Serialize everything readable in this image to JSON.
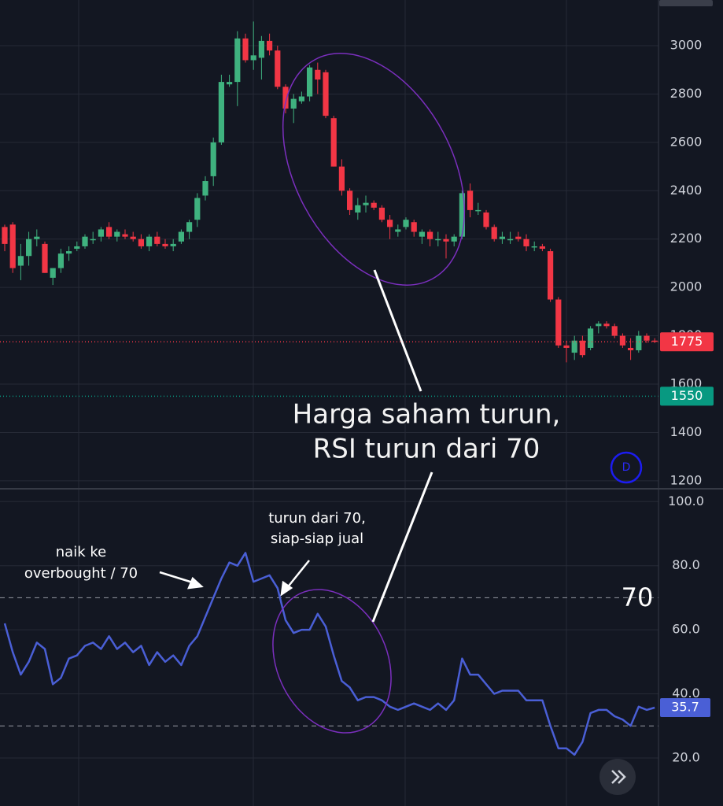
{
  "chart_data": [
    {
      "type": "candlestick",
      "open": [
        2250,
        2260,
        2090,
        2130,
        2200,
        2180,
        2040,
        2080,
        2140,
        2160,
        2170,
        2200,
        2210,
        2250,
        2210,
        2220,
        2210,
        2200,
        2170,
        2210,
        2180,
        2170,
        2190,
        2230,
        2280,
        2380,
        2460,
        2600,
        2840,
        2850,
        3030,
        2940,
        2950,
        3020,
        2980,
        2830,
        2740,
        2770,
        2790,
        2900,
        2890,
        2700,
        2500,
        2400,
        2310,
        2340,
        2350,
        2330,
        2280,
        2230,
        2250,
        2270,
        2210,
        2230,
        2200,
        2200,
        2190,
        2210,
        2400,
        2320,
        2310,
        2250,
        2200,
        2200,
        2210,
        2200,
        2170,
        2170,
        2150,
        1950,
        1760,
        1730,
        1780,
        1750,
        1840,
        1850,
        1840,
        1800,
        1750,
        1740,
        1800,
        1780
      ],
      "high": [
        2260,
        2270,
        2180,
        2230,
        2240,
        2190,
        2080,
        2160,
        2170,
        2190,
        2220,
        2230,
        2250,
        2270,
        2240,
        2240,
        2230,
        2220,
        2220,
        2230,
        2200,
        2200,
        2240,
        2280,
        2390,
        2460,
        2620,
        2880,
        2880,
        3060,
        3050,
        3100,
        3040,
        3050,
        3000,
        2840,
        2800,
        2810,
        2920,
        2930,
        2900,
        2710,
        2530,
        2410,
        2370,
        2380,
        2360,
        2340,
        2300,
        2260,
        2290,
        2280,
        2240,
        2240,
        2230,
        2220,
        2220,
        2400,
        2430,
        2350,
        2320,
        2260,
        2230,
        2230,
        2230,
        2220,
        2190,
        2180,
        2160,
        1960,
        1780,
        1800,
        1800,
        1840,
        1860,
        1860,
        1850,
        1810,
        1790,
        1820,
        1810,
        1790
      ],
      "low": [
        2150,
        2060,
        2030,
        2090,
        2170,
        2060,
        2010,
        2060,
        2110,
        2150,
        2160,
        2180,
        2190,
        2200,
        2190,
        2200,
        2190,
        2160,
        2150,
        2170,
        2160,
        2150,
        2180,
        2200,
        2250,
        2360,
        2420,
        2590,
        2830,
        2750,
        2930,
        2900,
        2860,
        2960,
        2820,
        2720,
        2680,
        2760,
        2770,
        2800,
        2700,
        2500,
        2380,
        2300,
        2280,
        2310,
        2320,
        2270,
        2200,
        2210,
        2240,
        2210,
        2180,
        2170,
        2170,
        2120,
        2170,
        2200,
        2290,
        2300,
        2240,
        2190,
        2180,
        2180,
        2190,
        2150,
        2150,
        2150,
        1940,
        1750,
        1690,
        1700,
        1710,
        1740,
        1810,
        1830,
        1790,
        1750,
        1700,
        1730,
        1770,
        1770
      ],
      "close": [
        2180,
        2080,
        2130,
        2200,
        2210,
        2060,
        2080,
        2140,
        2150,
        2170,
        2210,
        2200,
        2240,
        2210,
        2230,
        2210,
        2200,
        2170,
        2210,
        2180,
        2170,
        2180,
        2230,
        2270,
        2370,
        2440,
        2600,
        2850,
        2850,
        3030,
        2940,
        2960,
        3020,
        2980,
        2830,
        2740,
        2780,
        2790,
        2910,
        2860,
        2710,
        2500,
        2400,
        2320,
        2340,
        2350,
        2330,
        2280,
        2250,
        2240,
        2280,
        2230,
        2230,
        2200,
        2200,
        2190,
        2210,
        2390,
        2320,
        2320,
        2250,
        2200,
        2210,
        2200,
        2200,
        2170,
        2170,
        2160,
        1950,
        1760,
        1750,
        1780,
        1720,
        1830,
        1850,
        1840,
        1800,
        1760,
        1740,
        1800,
        1780,
        1775
      ],
      "up_color": "#3fb27f",
      "down_color": "#f23645",
      "ylim": [
        1167,
        3189
      ],
      "yticks": [
        1200,
        1400,
        1600,
        1800,
        2000,
        2200,
        2400,
        2600,
        2800,
        3000
      ],
      "grid": true,
      "price_lines": [
        {
          "value": 1775,
          "color": "#f23645"
        },
        {
          "value": 1550,
          "color": "#089981"
        }
      ],
      "annotations": [
        "Harga saham turun,",
        "RSI turun dari 70"
      ],
      "badge": "D"
    },
    {
      "type": "line",
      "series": [
        {
          "color": "#4a5fd6",
          "values": [
            62,
            53,
            46,
            50,
            56,
            54,
            43,
            45,
            51,
            52,
            55,
            56,
            54,
            58,
            54,
            56,
            53,
            55,
            49,
            53,
            50,
            52,
            49,
            55,
            58,
            64,
            70,
            76,
            81,
            80,
            84,
            75,
            76,
            77,
            73,
            63,
            59,
            60,
            60,
            65,
            61,
            52,
            44,
            42,
            38,
            39,
            39,
            38,
            36,
            35,
            36,
            37,
            36,
            35,
            37,
            35,
            38,
            51,
            46,
            46,
            43,
            40,
            41,
            41,
            41,
            38,
            38,
            38,
            30,
            23,
            23,
            21,
            25,
            34,
            35,
            35,
            33,
            32,
            30,
            36,
            35,
            35.7
          ]
        }
      ],
      "ylim": [
        5,
        104
      ],
      "yticks": [
        {
          "value": 20,
          "label": "20.0"
        },
        {
          "value": 40,
          "label": "40.0"
        },
        {
          "value": 60,
          "label": "60.0"
        },
        {
          "value": 80,
          "label": "80.0"
        },
        {
          "value": 100,
          "label": "100.0"
        }
      ],
      "levels": [
        70,
        30
      ],
      "grid": true,
      "annotations": [
        "naik ke",
        "overbought / 70",
        "turun dari 70,",
        "siap-siap jual",
        "70"
      ]
    }
  ]
}
